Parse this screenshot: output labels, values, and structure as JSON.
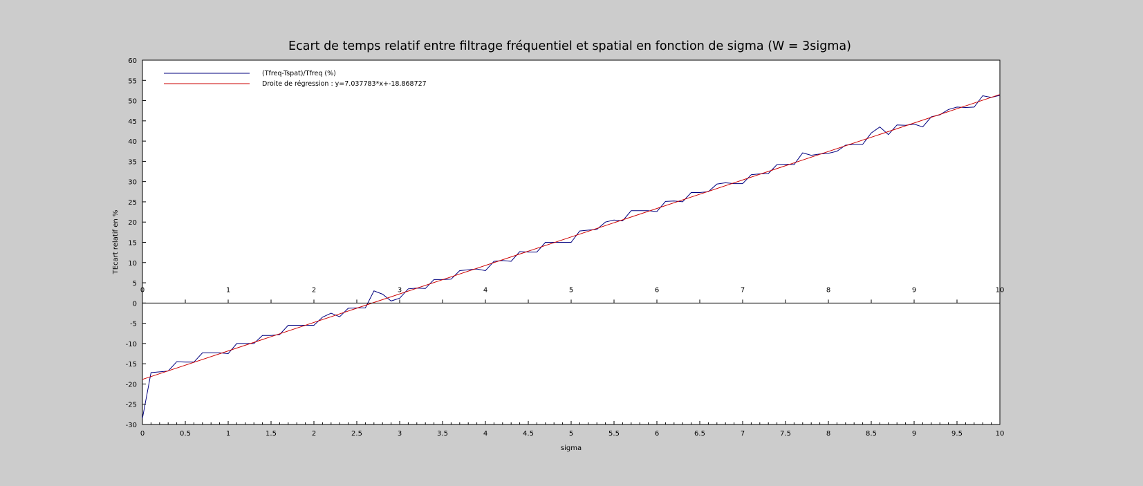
{
  "chart_data": {
    "type": "line",
    "title": "Ecart de temps relatif entre filtrage fréquentiel et spatial en fonction de sigma (W = 3sigma)",
    "xlabel": "sigma",
    "ylabel": "TEcart relatif en %",
    "xlim": [
      0,
      10
    ],
    "ylim": [
      -30,
      60
    ],
    "x_ticks": [
      "0",
      "0.5",
      "1",
      "1.5",
      "2",
      "2.5",
      "3",
      "3.5",
      "4",
      "4.5",
      "5",
      "5.5",
      "6",
      "6.5",
      "7",
      "7.5",
      "8",
      "8.5",
      "9",
      "9.5",
      "10"
    ],
    "x_axis_at_zero_labels": [
      "0",
      "1",
      "2",
      "3",
      "4",
      "5",
      "6",
      "7",
      "8",
      "9",
      "10"
    ],
    "y_ticks": [
      "-30",
      "-25",
      "-20",
      "-15",
      "-10",
      "-5",
      "0",
      "5",
      "10",
      "15",
      "20",
      "25",
      "30",
      "35",
      "40",
      "45",
      "50",
      "55",
      "60"
    ],
    "grid": false,
    "legend_position": "top-left",
    "background_color": "#cccccc",
    "plot_background": "#ffffff",
    "series": [
      {
        "name": "(Tfreq-Tspat)/Tfreq (%)",
        "color": "#00007f",
        "style": "line",
        "x": [
          0,
          0.1,
          0.2,
          0.3,
          0.4,
          0.5,
          0.6,
          0.7,
          0.8,
          0.9,
          1.0,
          1.1,
          1.2,
          1.3,
          1.4,
          1.5,
          1.6,
          1.7,
          1.8,
          1.9,
          2.0,
          2.1,
          2.2,
          2.3,
          2.4,
          2.5,
          2.6,
          2.7,
          2.8,
          2.9,
          3.0,
          3.1,
          3.2,
          3.3,
          3.4,
          3.5,
          3.6,
          3.7,
          3.8,
          3.9,
          4.0,
          4.1,
          4.2,
          4.3,
          4.4,
          4.5,
          4.6,
          4.7,
          4.8,
          4.9,
          5.0,
          5.1,
          5.2,
          5.3,
          5.4,
          5.5,
          5.6,
          5.7,
          5.8,
          5.9,
          6.0,
          6.1,
          6.2,
          6.3,
          6.4,
          6.5,
          6.6,
          6.7,
          6.8,
          6.9,
          7.0,
          7.1,
          7.2,
          7.3,
          7.4,
          7.5,
          7.6,
          7.7,
          7.8,
          7.9,
          8.0,
          8.1,
          8.2,
          8.3,
          8.4,
          8.5,
          8.6,
          8.7,
          8.8,
          8.9,
          9.0,
          9.1,
          9.2,
          9.3,
          9.4,
          9.5,
          9.6,
          9.7,
          9.8,
          9.9,
          10.0
        ],
        "y": [
          -28.5,
          -17.2,
          -17.0,
          -16.8,
          -14.5,
          -14.6,
          -14.6,
          -12.3,
          -12.3,
          -12.3,
          -12.5,
          -10.0,
          -10.0,
          -10.0,
          -8.0,
          -8.0,
          -7.8,
          -5.5,
          -5.5,
          -5.5,
          -5.5,
          -3.5,
          -2.5,
          -3.4,
          -1.3,
          -1.2,
          -1.2,
          3.0,
          2.2,
          0.5,
          1.2,
          3.5,
          3.7,
          3.6,
          5.8,
          5.8,
          5.9,
          8.0,
          8.2,
          8.4,
          8.0,
          10.3,
          10.5,
          10.3,
          12.7,
          12.6,
          12.6,
          15.0,
          15.0,
          15.0,
          15.0,
          17.8,
          18.0,
          18.2,
          20.0,
          20.5,
          20.3,
          22.8,
          22.8,
          22.8,
          22.6,
          25.1,
          25.2,
          25.0,
          27.3,
          27.3,
          27.5,
          29.4,
          29.7,
          29.5,
          29.5,
          31.7,
          31.9,
          32.0,
          34.2,
          34.3,
          34.2,
          37.1,
          36.5,
          36.8,
          37.0,
          37.5,
          39.0,
          39.2,
          39.2,
          42.0,
          43.5,
          41.6,
          44.0,
          43.9,
          44.2,
          43.5,
          46.0,
          46.5,
          47.8,
          48.4,
          48.3,
          48.4,
          51.2,
          50.8,
          51.3
        ]
      },
      {
        "name": "Droite de régression : y=7.037783*x+-18.868727",
        "color": "#cc0000",
        "style": "line",
        "x": [
          0,
          10
        ],
        "y": [
          -18.868727,
          51.509103
        ]
      }
    ]
  }
}
